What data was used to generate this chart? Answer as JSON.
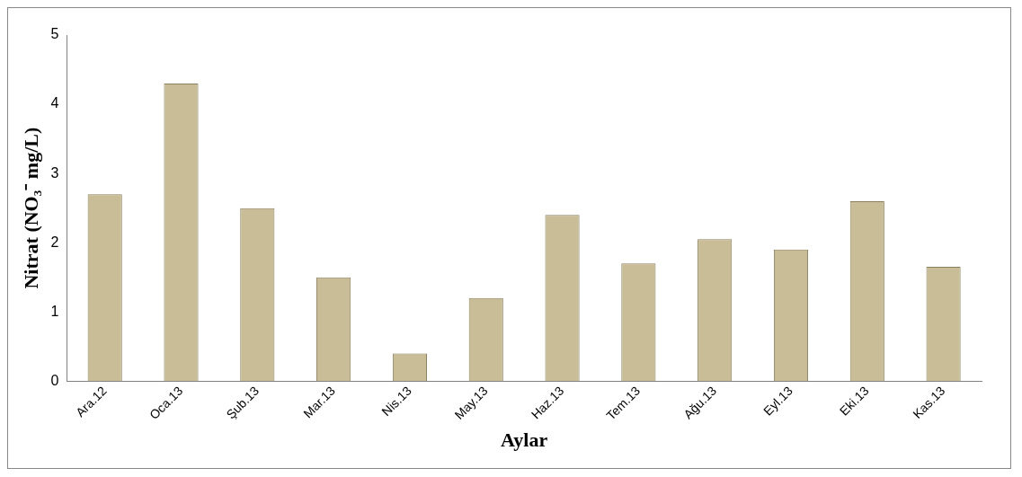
{
  "chart_data": {
    "type": "bar",
    "xlabel": "Aylar",
    "ylabel": "Nitrat (NO₃⁻ mg/L)",
    "categories": [
      "Ara.12",
      "Oca.13",
      "Şub.13",
      "Mar.13",
      "Nis.13",
      "May.13",
      "Haz.13",
      "Tem.13",
      "Ağu.13",
      "Eyl.13",
      "Eki.13",
      "Kas.13"
    ],
    "values": [
      2.7,
      4.3,
      2.5,
      1.5,
      0.4,
      1.2,
      2.4,
      1.7,
      2.05,
      1.9,
      2.6,
      1.65
    ],
    "color": "#c8bd96",
    "ylim": [
      0,
      5
    ],
    "yticks": [
      0,
      1,
      2,
      3,
      4,
      5
    ],
    "grid": false,
    "legend": false
  }
}
